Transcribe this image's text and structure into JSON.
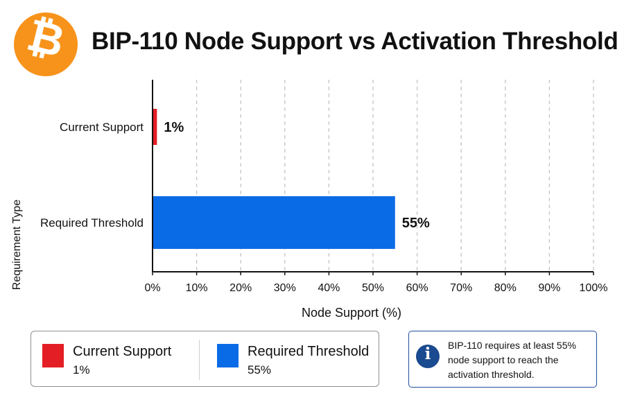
{
  "header": {
    "logo_glyph": "₿",
    "logo_icon": "bitcoin-logo-icon",
    "logo_color": "#f7931a",
    "title": "BIP-110 Node Support vs Activation Threshold"
  },
  "chart_data": {
    "type": "bar",
    "orientation": "horizontal",
    "title": "BIP-110 Node Support vs Activation Threshold",
    "xlabel": "Node Support (%)",
    "ylabel": "Requirement Type",
    "categories": [
      "Current Support",
      "Required Threshold"
    ],
    "values": [
      1,
      55
    ],
    "data_labels": [
      "1%",
      "55%"
    ],
    "colors": [
      "#e31e24",
      "#0a6be6"
    ],
    "xlim": [
      0,
      100
    ],
    "x_ticks": [
      0,
      10,
      20,
      30,
      40,
      50,
      60,
      70,
      80,
      90,
      100
    ],
    "x_tick_labels": [
      "0%",
      "10%",
      "20%",
      "30%",
      "40%",
      "50%",
      "60%",
      "70%",
      "80%",
      "90%",
      "100%"
    ],
    "grid": "vertical dashed",
    "legend_placement": "bottom-left"
  },
  "legend": {
    "items": [
      {
        "label": "Current Support",
        "value": "1%",
        "color": "#e31e24"
      },
      {
        "label": "Required Threshold",
        "value": "55%",
        "color": "#0a6be6"
      }
    ]
  },
  "info": {
    "icon": "info-icon",
    "icon_glyph": "i",
    "text": "BIP-110 requires at least 55% node support to reach the activation threshold."
  }
}
